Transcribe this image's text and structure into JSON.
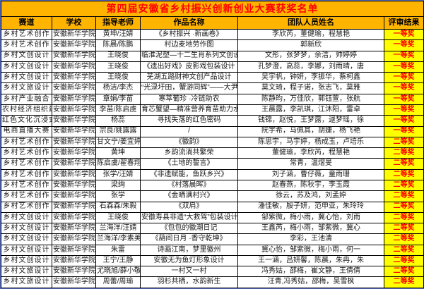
{
  "title": "第四届安徽省乡村振兴创新创业大赛获奖名单",
  "columns": [
    "赛道",
    "学校",
    "指导老师",
    "作品名称",
    "团队人员姓名",
    "评审结果"
  ],
  "colors": {
    "title_bg": "#FFB400",
    "title_text": "#FF0000",
    "header_bg": "#FFB400",
    "header_text": "#000000",
    "result_bg": "#FFFF00",
    "result_text": "#FF0000",
    "grid_border": "#000000",
    "page_bg": "#5A6FC0"
  },
  "rows": [
    {
      "track": "乡村艺术创作",
      "school": "安徽新华学院",
      "teacher": "黄坤/汪婧",
      "work": "《乡村振兴 ·新画卷》",
      "team": "李欣芮，董健瑜，程慧艳",
      "result": "一等奖"
    },
    {
      "track": "乡村艺术创作",
      "school": "安徽新华学院",
      "teacher": "陈晨/陈鹏",
      "work": "村边麦地劳作图",
      "team": "郭新欣",
      "result": "一等奖"
    },
    {
      "track": "乡村文创设计",
      "school": "安徽新华学院",
      "teacher": "王晓俊",
      "work": "临淮泥塑—十二生肖系列文创设计",
      "team": "文彤，张梦梦，余洁，帅婷婷",
      "result": "一等奖"
    },
    {
      "track": "乡村文创设计",
      "school": "安徽新华学院",
      "teacher": "王晓俊",
      "work": "《遗出好戏》皮影戏包装设计",
      "team": "孔梦澄，高蕊，李娜，刘雨晴，唐",
      "result": "一等奖"
    },
    {
      "track": "乡村文创设计",
      "school": "安徽新华学院",
      "teacher": "王晓俊",
      "work": "芜湖五路财神文创产品设计",
      "team": "吴宇帆，钟妍，李振华，蔡柯鑫",
      "result": "一等奖"
    },
    {
      "track": "乡村文旅设计",
      "school": "安徽新华学院",
      "teacher": "杨洁/李杰",
      "work": "“光渌圩田，蟹游同辉”——大尹",
      "team": "莫文琦，程子诺，张志飞，莫雅",
      "result": "一等奖"
    },
    {
      "track": "乡村产业融合",
      "school": "安徽新华学院",
      "teacher": "章娟/李苗",
      "work": "寒萃葡珍 ·冷链助农",
      "team": "陈静昀，万佳欣，郭钰萱，张航",
      "result": "一等奖"
    },
    {
      "track": "农村经济组织建",
      "school": "安徽新华学院",
      "teacher": "李苗/陈启虞",
      "work": "育芯蟹望—精准营养育苗助力水产",
      "team": "王晨露，李凯琪，江沐阳，雷卓",
      "result": "一等奖"
    },
    {
      "track": "红色文化沉浸式",
      "school": "安徽新华学院",
      "teacher": "杨蕊",
      "work": "寻找失落的红色密码",
      "team": "钱锦，赵悦，王梦露，逯梦瑶，徐",
      "result": "一等奖"
    },
    {
      "track": "电商直播大赛",
      "school": "安徽新华学院",
      "teacher": "宗良/姚露露",
      "work": "/",
      "team": "阮宇希，马佩其，胡婕，杨飞艳",
      "result": "一等奖"
    },
    {
      "track": "乡村艺术创作",
      "school": "安徽新华学院",
      "teacher": "甘文宁/姜宜婷",
      "work": "《徽韵》",
      "team": "陈思宇，马宇婷，杨成玉，卢培乐",
      "result": "二等奖"
    },
    {
      "track": "乡村艺术创作",
      "school": "安徽新华学院",
      "teacher": "黄坤",
      "work": "乡韵流淌共繁荣",
      "team": "董健瑜，李欣芮，程慧艳",
      "result": "二等奖"
    },
    {
      "track": "乡村艺术创作",
      "school": "安徽新华学院",
      "teacher": "陈启虞/翟春翔",
      "work": "《土地的誓言》",
      "team": "常青，温熠旻",
      "result": "二等奖"
    },
    {
      "track": "乡村艺术创作",
      "school": "安徽新华学院",
      "teacher": "张学/汪婧",
      "work": "《非遗赋能，鱼跃乡兴》",
      "team": "刘子涵，曹仔薇，童雨珊",
      "result": "二等奖"
    },
    {
      "track": "乡村艺术创作",
      "school": "安徽新华学院",
      "teacher": "梁绚",
      "work": "《村落晨晖》",
      "team": "赵春燕，陈秋宇，李玉霞",
      "result": "二等奖"
    },
    {
      "track": "乡村艺术创作",
      "school": "安徽新华学院",
      "teacher": "张学",
      "work": "《金晒满村兴》",
      "team": "徐云，苏及鸿，刘孟婷",
      "result": "二等奖"
    },
    {
      "track": "乡村艺术创作",
      "school": "安徽新华学院",
      "teacher": "石森森/朱毅",
      "work": "《双肩》",
      "team": "潘佳敏，殷子妍，范申亚，朱玲玲",
      "result": "二等奖"
    },
    {
      "track": "乡村文创设计",
      "school": "安徽新华学院",
      "teacher": "王晓俊",
      "work": "安徽寿县非遗“大救驾”包装设计",
      "team": "邹紫微，梅小雨，冀心怡，刘雨",
      "result": "二等奖"
    },
    {
      "track": "乡村文创设计",
      "school": "安徽新华学院",
      "teacher": "兰海洋/汪婧",
      "work": "《包包的徽潮日记",
      "team": "王鑫芮，梅小雨，邹紫微，冀心",
      "result": "二等奖"
    },
    {
      "track": "乡村文创设计",
      "school": "安徽新华学院",
      "teacher": "兰海洋/李素美",
      "work": "《葫间日月 ·香守乾坤》",
      "team": "李彩，王池清",
      "result": "二等奖"
    },
    {
      "track": "乡村文创设计",
      "school": "安徽新华学院",
      "teacher": "朱雷",
      "work": "诗画江南，梦里徽州",
      "team": "冀心怡，邹紫微，梅小雨，何一",
      "result": "二等奖"
    },
    {
      "track": "乡村文创设计",
      "school": "安徽新华学院",
      "teacher": "王宁/王静",
      "work": "安徽无为鱼灯形象设计",
      "team": "王一涵，吕妍馨，陈晨，朱冉，朱",
      "result": "二等奖"
    },
    {
      "track": "乡村文旅设计",
      "school": "安徽新华学院",
      "teacher": "尤晓旭/薛小敬",
      "work": "一村又一村",
      "team": "冯秀姑，邵梅，崔文静，王倩倩",
      "result": "二等奖"
    },
    {
      "track": "乡村文旅设计",
      "school": "安徽新华学院",
      "teacher": "周蕾/周瑜",
      "work": "羽杉共栖，水韵新生",
      "team": "汪青,冯秀姑，邵梅，吴雪枫",
      "result": "二等奖"
    }
  ]
}
